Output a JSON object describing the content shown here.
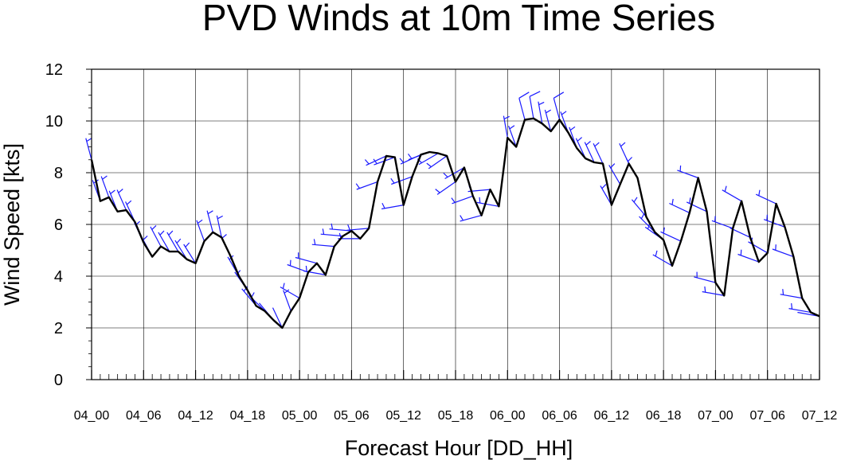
{
  "chart_data": {
    "type": "line",
    "title": "PVD Winds at 10m Time Series",
    "xlabel": "Forecast Hour [DD_HH]",
    "ylabel": "Wind Speed [kts]",
    "ylim": [
      0,
      12
    ],
    "xlim": [
      0,
      84
    ],
    "grid": true,
    "x_tick_values": [
      0,
      6,
      12,
      18,
      24,
      30,
      36,
      42,
      48,
      54,
      60,
      66,
      72,
      78,
      84
    ],
    "x_tick_labels": [
      "04_00",
      "04_06",
      "04_12",
      "04_18",
      "05_00",
      "05_06",
      "05_12",
      "05_18",
      "06_00",
      "06_06",
      "06_12",
      "06_18",
      "07_00",
      "07_06",
      "07_12"
    ],
    "y_tick_values": [
      0,
      2,
      4,
      6,
      8,
      10,
      12
    ],
    "y_tick_labels": [
      "0",
      "2",
      "4",
      "6",
      "8",
      "10",
      "12"
    ],
    "series": [
      {
        "color": "#000000",
        "x": [
          0,
          1,
          2,
          3,
          4,
          5,
          6,
          7,
          8,
          9,
          10,
          11,
          12,
          13,
          14,
          15,
          16,
          17,
          18,
          19,
          20,
          21,
          22,
          23,
          24,
          25,
          26,
          27,
          28,
          29,
          30,
          31,
          32,
          33,
          34,
          35,
          36,
          37,
          38,
          39,
          40,
          41,
          42,
          43,
          44,
          45,
          46,
          47,
          48,
          49,
          50,
          51,
          52,
          53,
          54,
          55,
          56,
          57,
          58,
          59,
          60,
          61,
          62,
          63,
          64,
          65,
          66,
          67,
          68,
          69,
          70,
          71,
          72,
          73,
          74,
          75,
          76,
          77,
          78,
          79,
          80,
          81,
          82,
          83,
          84
        ],
        "values": [
          8.5,
          6.9,
          7.05,
          6.5,
          6.55,
          6.1,
          5.3,
          4.75,
          5.15,
          4.95,
          4.95,
          4.65,
          4.5,
          5.35,
          5.7,
          5.5,
          4.8,
          4.0,
          3.45,
          2.85,
          2.65,
          2.3,
          2.0,
          2.65,
          3.15,
          4.15,
          4.5,
          4.05,
          5.15,
          5.55,
          5.75,
          5.45,
          5.85,
          7.65,
          8.65,
          8.6,
          6.75,
          7.85,
          8.7,
          8.8,
          8.75,
          8.65,
          7.65,
          8.2,
          7.1,
          6.35,
          7.35,
          6.7,
          9.35,
          9.0,
          10.05,
          10.1,
          9.9,
          9.6,
          10.05,
          9.55,
          8.95,
          8.55,
          8.4,
          8.35,
          6.75,
          7.55,
          8.35,
          7.8,
          6.3,
          5.7,
          5.4,
          4.4,
          5.35,
          6.45,
          7.8,
          6.5,
          3.75,
          3.25,
          5.85,
          6.9,
          5.5,
          4.55,
          4.9,
          6.8,
          5.9,
          4.75,
          3.15,
          2.6,
          2.45
        ]
      }
    ],
    "barbs": {
      "color": "#1a1aff",
      "x": [
        0,
        1,
        2,
        3,
        4,
        5,
        6,
        7,
        8,
        9,
        10,
        11,
        12,
        13,
        14,
        15,
        16,
        17,
        18,
        19,
        20,
        21,
        22,
        23,
        24,
        25,
        26,
        27,
        28,
        29,
        30,
        31,
        32,
        33,
        34,
        35,
        36,
        37,
        38,
        39,
        40,
        41,
        42,
        43,
        44,
        45,
        46,
        47,
        48,
        49,
        50,
        51,
        52,
        53,
        54,
        55,
        56,
        57,
        58,
        59,
        60,
        61,
        62,
        63,
        64,
        65,
        66,
        67,
        68,
        69,
        70,
        71,
        72,
        73,
        74,
        75,
        76,
        77,
        78,
        79,
        80,
        81,
        82,
        83,
        84
      ],
      "direction_deg": [
        345,
        340,
        340,
        338,
        336,
        335,
        335,
        332,
        332,
        330,
        330,
        328,
        328,
        340,
        345,
        348,
        335,
        330,
        325,
        320,
        315,
        320,
        335,
        340,
        300,
        290,
        285,
        280,
        275,
        275,
        275,
        270,
        265,
        250,
        245,
        250,
        260,
        250,
        245,
        250,
        240,
        235,
        235,
        240,
        250,
        255,
        265,
        280,
        350,
        340,
        345,
        350,
        350,
        345,
        345,
        340,
        340,
        335,
        335,
        335,
        330,
        330,
        335,
        330,
        320,
        315,
        305,
        300,
        295,
        295,
        290,
        295,
        285,
        280,
        290,
        300,
        295,
        290,
        300,
        295,
        290,
        290,
        280,
        280,
        280
      ]
    }
  }
}
